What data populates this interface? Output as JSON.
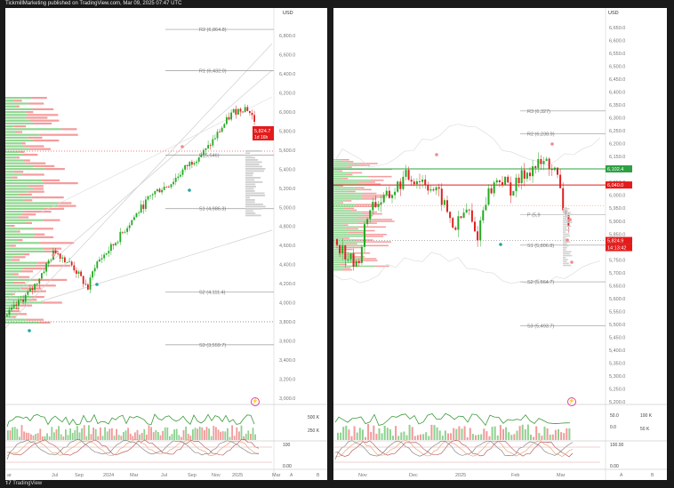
{
  "header": {
    "published": "TickmillMarketing published on TradingView.com, Mar 09, 2025 07:47 UTC"
  },
  "footer": {
    "brand": "TradingView"
  },
  "colors": {
    "up": "#26a69a",
    "down": "#ef5350",
    "bull": "#22aa22",
    "bear": "#dd2222",
    "pivot_line": "#999999",
    "flag_red": "#e31b1b",
    "flag_green": "#2ea043"
  },
  "left_panel": {
    "currency": "USD",
    "price_ticks": [
      "6,800.0",
      "6,600.0",
      "6,400.0",
      "6,200.0",
      "6,000.0",
      "5,800.0",
      "5,600.0",
      "5,400.0",
      "5,200.0",
      "5,000.0",
      "4,800.0",
      "4,600.0",
      "4,400.0",
      "4,200.0",
      "4,000.0",
      "3,800.0",
      "3,600.0",
      "3,400.0",
      "3,200.0",
      "3,000.0"
    ],
    "pivots": [
      {
        "label": "R2 (6,864.8)",
        "value": 6864.8
      },
      {
        "label": "R1 (6,432.0)",
        "value": 6432.0
      },
      {
        "label": "P (5,546)",
        "value": 5546
      },
      {
        "label": "S1 (4,986.3)",
        "value": 4986.3
      },
      {
        "label": "S2 (4,111.4)",
        "value": 4111.4
      },
      {
        "label": "S3 (3,559.7)",
        "value": 3559.7
      }
    ],
    "last_price": "5,824.7",
    "last_countdown": "1d 16h",
    "volume_ticks": [
      "500 K",
      "250 K"
    ],
    "osc_ticks": [
      "100",
      "0.00"
    ],
    "time_labels": [
      "ar",
      "Jul",
      "Sep",
      "2024",
      "Mar",
      "Jul",
      "Sep",
      "Nov",
      "2025",
      "Mar"
    ],
    "buttons": [
      "A",
      "B"
    ]
  },
  "right_panel": {
    "currency": "USD",
    "price_ticks": [
      "6,650.0",
      "6,600.0",
      "6,550.0",
      "6,500.0",
      "6,450.0",
      "6,400.0",
      "6,350.0",
      "6,300.0",
      "6,250.0",
      "6,200.0",
      "6,150.0",
      "6,100.0",
      "6,050.0",
      "6,000.0",
      "5,950.0",
      "5,900.0",
      "5,850.0",
      "5,800.0",
      "5,750.0",
      "5,700.0",
      "5,650.0",
      "5,600.0",
      "5,550.0",
      "5,500.0",
      "5,450.0",
      "5,400.0",
      "5,350.0",
      "5,300.0",
      "5,250.0",
      "5,200.0"
    ],
    "pivots": [
      {
        "label": "R3 (6,327)",
        "value": 6327
      },
      {
        "label": "R2 (6,238.9)",
        "value": 6238.9
      },
      {
        "label": "P (5,9",
        "value": 5925
      },
      {
        "label": "S1 (5,806.8)",
        "value": 5806.8
      },
      {
        "label": "S2 (5,664.7)",
        "value": 5664.7
      },
      {
        "label": "S3 (5,493.7)",
        "value": 5493.7
      }
    ],
    "flags": [
      {
        "text": "6,102.4",
        "value": 6102.4,
        "kind": "green"
      },
      {
        "text": "6,040.0",
        "value": 6040.0,
        "kind": "red"
      },
      {
        "text": "5,824.9",
        "value": 5824.9,
        "kind": "red"
      },
      {
        "text": "14:13:42",
        "value": 5800,
        "kind": "red"
      }
    ],
    "volume_ticks": [
      "100 K",
      "50 K"
    ],
    "osc_ticks": [
      "50.0",
      "0.0",
      "100.00",
      "0.00"
    ],
    "time_labels": [
      "Nov",
      "Dec",
      "2025",
      "Feb",
      "Mar"
    ],
    "buttons": [
      "A",
      "B"
    ]
  }
}
